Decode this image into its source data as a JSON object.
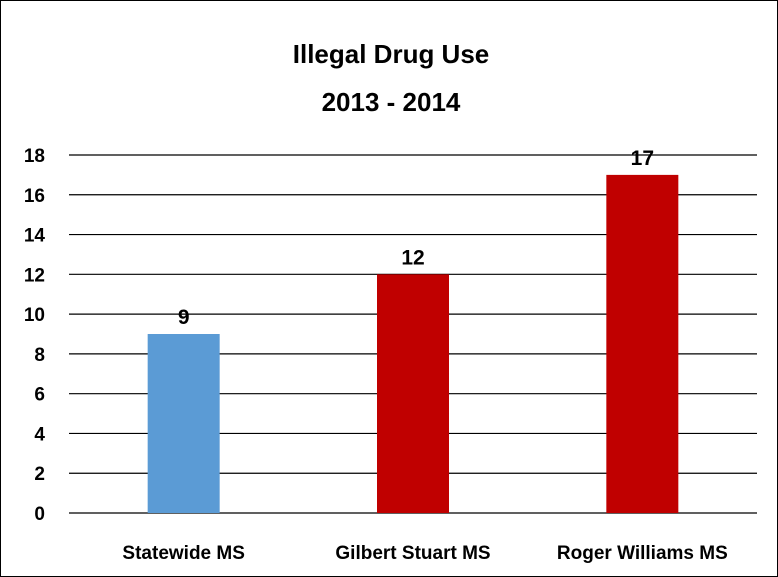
{
  "chart_data": {
    "type": "bar",
    "title_lines": [
      "Illegal Drug Use",
      "2013 - 2014"
    ],
    "categories": [
      "Statewide MS",
      "Gilbert Stuart MS",
      "Roger Williams MS"
    ],
    "values": [
      9,
      12,
      17
    ],
    "data_labels": [
      "9",
      "12",
      "17"
    ],
    "bar_colors": [
      "#5b9bd5",
      "#c00000",
      "#c00000"
    ],
    "ylim": [
      0,
      18
    ],
    "yticks": [
      0,
      2,
      4,
      6,
      8,
      10,
      12,
      14,
      16,
      18
    ],
    "ytick_labels": [
      "0",
      "2",
      "4",
      "6",
      "8",
      "10",
      "12",
      "14",
      "16",
      "18"
    ],
    "grid": true,
    "legend": "none"
  }
}
